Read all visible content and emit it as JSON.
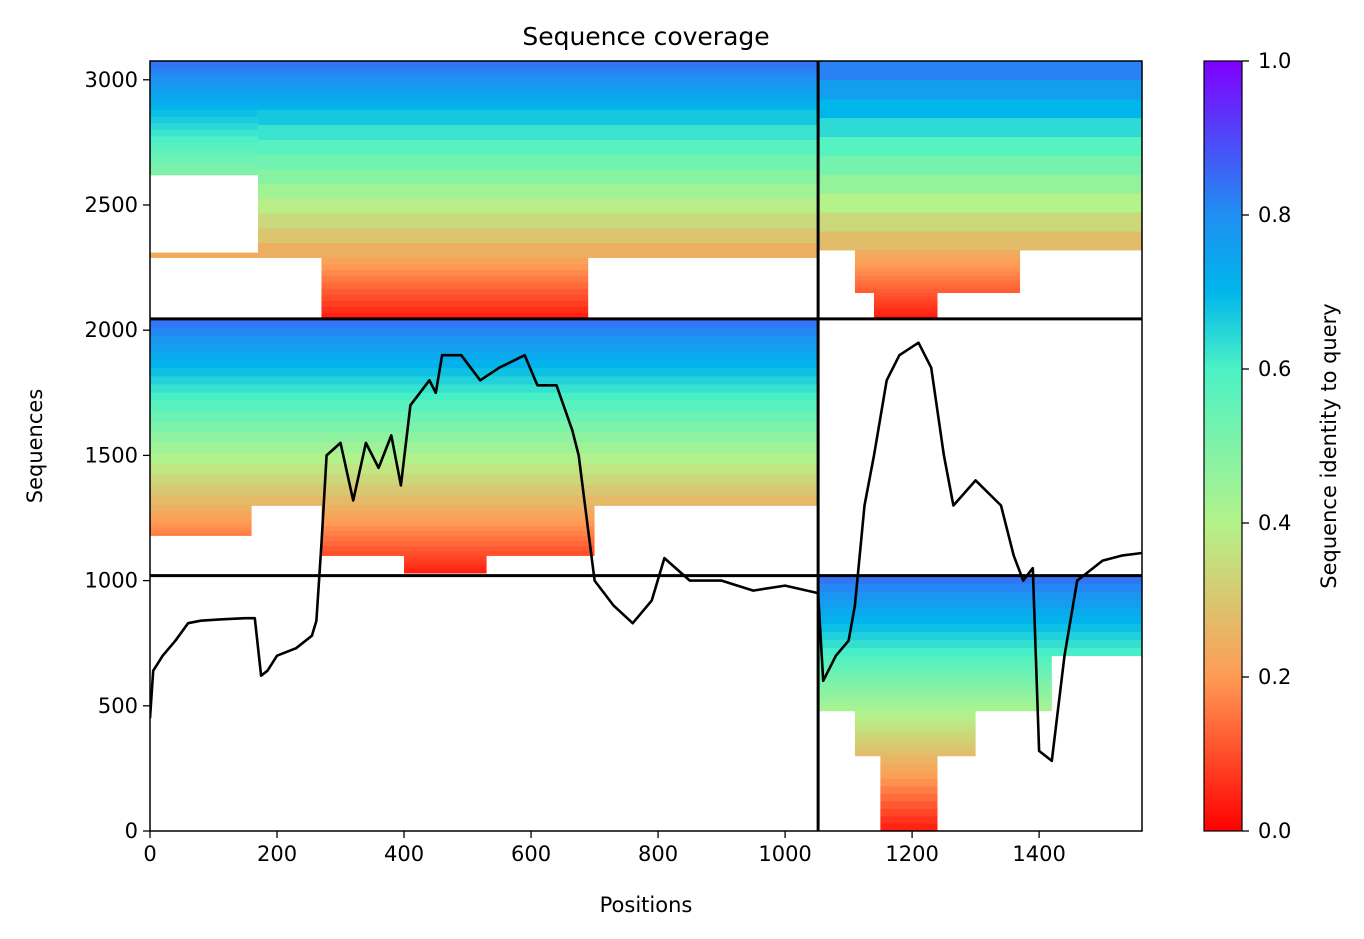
{
  "chart_data": {
    "type": "heatmap",
    "title": "Sequence coverage",
    "xlabel": "Positions",
    "ylabel": "Sequences",
    "xlim": [
      0,
      1562
    ],
    "ylim": [
      0,
      3075
    ],
    "x_ticks": [
      0,
      200,
      400,
      600,
      800,
      1000,
      1200,
      1400
    ],
    "y_ticks": [
      0,
      500,
      1000,
      1500,
      2000,
      2500,
      3000
    ],
    "x_tick_labels": [
      "0",
      "200",
      "400",
      "600",
      "800",
      "1000",
      "1200",
      "1400"
    ],
    "y_tick_labels": [
      "0",
      "500",
      "1000",
      "1500",
      "2000",
      "2500",
      "3000"
    ],
    "block_boundaries": {
      "x": [
        1052
      ],
      "y": [
        1020,
        2045
      ]
    },
    "colorbar": {
      "label": "Sequence identity to query",
      "colormap": "rainbow_r",
      "range": [
        0.0,
        1.0
      ],
      "ticks": [
        0.0,
        0.2,
        0.4,
        0.6,
        0.8,
        1.0
      ],
      "tick_labels": [
        "0.0",
        "0.2",
        "0.4",
        "0.6",
        "0.8",
        "1.0"
      ]
    },
    "blocks": [
      {
        "name": "block-A1",
        "x_range": [
          0,
          1052
        ],
        "y_range": [
          2045,
          3075
        ],
        "bands": [
          {
            "x": [
              0,
              1052
            ],
            "y": [
              2880,
              3075
            ]
          },
          {
            "x": [
              0,
              170
            ],
            "y": [
              2620,
              2880
            ]
          },
          {
            "x": [
              170,
              1052
            ],
            "y": [
              2290,
              2880
            ]
          },
          {
            "x": [
              0,
              170
            ],
            "y": [
              2290,
              2310
            ]
          },
          {
            "x": [
              270,
              690
            ],
            "y": [
              2045,
              2290
            ]
          }
        ]
      },
      {
        "name": "block-B2",
        "x_range": [
          1052,
          1562
        ],
        "y_range": [
          2045,
          3075
        ],
        "bands": [
          {
            "x": [
              1052,
              1562
            ],
            "y": [
              2320,
              3075
            ]
          },
          {
            "x": [
              1110,
              1370
            ],
            "y": [
              2150,
              2320
            ]
          },
          {
            "x": [
              1140,
              1240
            ],
            "y": [
              2045,
              2150
            ]
          }
        ]
      },
      {
        "name": "block-A2",
        "x_range": [
          0,
          1052
        ],
        "y_range": [
          1020,
          2045
        ],
        "bands": [
          {
            "x": [
              0,
              1052
            ],
            "y": [
              1720,
              2045
            ]
          },
          {
            "x": [
              0,
              1052
            ],
            "y": [
              1300,
              1720
            ]
          },
          {
            "x": [
              0,
              160
            ],
            "y": [
              1180,
              1300
            ]
          },
          {
            "x": [
              270,
              700
            ],
            "y": [
              1100,
              1300
            ]
          },
          {
            "x": [
              400,
              530
            ],
            "y": [
              1030,
              1100
            ]
          }
        ]
      },
      {
        "name": "block-B1",
        "x_range": [
          1052,
          1562
        ],
        "y_range": [
          0,
          1020
        ],
        "bands": [
          {
            "x": [
              1052,
              1562
            ],
            "y": [
              700,
              1020
            ]
          },
          {
            "x": [
              1052,
              1420
            ],
            "y": [
              480,
              700
            ]
          },
          {
            "x": [
              1110,
              1300
            ],
            "y": [
              300,
              480
            ]
          },
          {
            "x": [
              1150,
              1240
            ],
            "y": [
              0,
              300
            ]
          }
        ]
      }
    ],
    "coverage_line": {
      "color": "#000000",
      "points": [
        [
          0,
          450
        ],
        [
          5,
          640
        ],
        [
          20,
          700
        ],
        [
          40,
          760
        ],
        [
          60,
          830
        ],
        [
          80,
          840
        ],
        [
          110,
          845
        ],
        [
          150,
          850
        ],
        [
          165,
          850
        ],
        [
          175,
          620
        ],
        [
          185,
          640
        ],
        [
          200,
          700
        ],
        [
          230,
          730
        ],
        [
          255,
          780
        ],
        [
          262,
          840
        ],
        [
          270,
          1150
        ],
        [
          278,
          1500
        ],
        [
          300,
          1550
        ],
        [
          320,
          1320
        ],
        [
          340,
          1550
        ],
        [
          360,
          1450
        ],
        [
          380,
          1580
        ],
        [
          395,
          1380
        ],
        [
          410,
          1700
        ],
        [
          440,
          1800
        ],
        [
          450,
          1750
        ],
        [
          460,
          1900
        ],
        [
          490,
          1900
        ],
        [
          520,
          1800
        ],
        [
          550,
          1850
        ],
        [
          590,
          1900
        ],
        [
          610,
          1780
        ],
        [
          640,
          1780
        ],
        [
          665,
          1600
        ],
        [
          675,
          1500
        ],
        [
          690,
          1200
        ],
        [
          700,
          1000
        ],
        [
          730,
          900
        ],
        [
          760,
          830
        ],
        [
          790,
          920
        ],
        [
          810,
          1090
        ],
        [
          850,
          1000
        ],
        [
          900,
          1000
        ],
        [
          950,
          960
        ],
        [
          1000,
          980
        ],
        [
          1052,
          950
        ],
        [
          1060,
          600
        ],
        [
          1080,
          700
        ],
        [
          1100,
          760
        ],
        [
          1110,
          900
        ],
        [
          1125,
          1300
        ],
        [
          1140,
          1500
        ],
        [
          1160,
          1800
        ],
        [
          1180,
          1900
        ],
        [
          1210,
          1950
        ],
        [
          1230,
          1850
        ],
        [
          1250,
          1500
        ],
        [
          1265,
          1300
        ],
        [
          1300,
          1400
        ],
        [
          1340,
          1300
        ],
        [
          1360,
          1100
        ],
        [
          1375,
          1000
        ],
        [
          1390,
          1050
        ],
        [
          1400,
          320
        ],
        [
          1420,
          280
        ],
        [
          1440,
          700
        ],
        [
          1460,
          1000
        ],
        [
          1500,
          1080
        ],
        [
          1530,
          1100
        ],
        [
          1562,
          1110
        ]
      ]
    }
  }
}
